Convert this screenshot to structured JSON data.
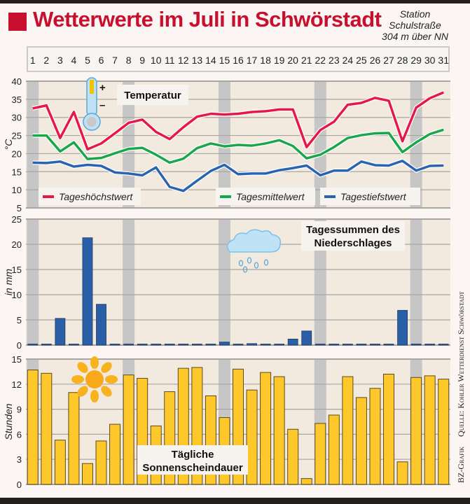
{
  "header": {
    "title": "Wetterwerte im Juli in Schwörstadt",
    "station_lines": [
      "Station",
      "Schulstraße",
      "304 m über NN"
    ]
  },
  "credit": {
    "left": "BZ-Grafik",
    "right": "Quelle: Kohler Wetterdienst Schwörstadt"
  },
  "colors": {
    "brand": "#c8102e",
    "high": "#e8174a",
    "mean": "#1aa64a",
    "low": "#2a63b0",
    "rain": "#2a5fa8",
    "sun": "#ffc82a",
    "weekend_band": "#c6c6c6",
    "plot_bg": "#f2eadf"
  },
  "days": [
    "1",
    "2",
    "3",
    "4",
    "5",
    "6",
    "7",
    "8",
    "9",
    "10",
    "11",
    "12",
    "13",
    "14",
    "15",
    "16",
    "17",
    "18",
    "19",
    "20",
    "21",
    "22",
    "23",
    "24",
    "25",
    "26",
    "27",
    "28",
    "29",
    "30",
    "31"
  ],
  "highlight_days": [
    1,
    8,
    15,
    22,
    29
  ],
  "chart_data": [
    {
      "type": "line",
      "title": "Temperatur",
      "ylabel": "°C",
      "ylim": [
        5,
        40
      ],
      "yticks": [
        5,
        10,
        15,
        20,
        25,
        30,
        35,
        40
      ],
      "x": "days",
      "grid": true,
      "series": [
        {
          "name": "Tageshöchstwert",
          "color": "#e8174a",
          "values": [
            32.5,
            33.3,
            24.3,
            31.5,
            21.2,
            22.8,
            25.6,
            28.5,
            29.4,
            26.0,
            24.0,
            27.3,
            30.2,
            31.0,
            30.8,
            31.0,
            31.5,
            31.7,
            32.2,
            32.2,
            21.8,
            26.5,
            28.8,
            33.5,
            34.0,
            35.4,
            34.6,
            23.4,
            32.7,
            35.3,
            36.9
          ]
        },
        {
          "name": "Tagesmittelwert",
          "color": "#1aa64a",
          "values": [
            25.0,
            25.0,
            20.6,
            23.1,
            18.5,
            18.8,
            20.1,
            21.3,
            21.6,
            19.7,
            17.5,
            18.6,
            21.5,
            22.8,
            22.0,
            22.4,
            22.2,
            22.8,
            23.7,
            22.1,
            18.7,
            19.7,
            21.8,
            24.3,
            25.1,
            25.6,
            25.7,
            20.4,
            23.1,
            25.4,
            26.6
          ]
        },
        {
          "name": "Tagestiefstwert",
          "color": "#2a63b0",
          "values": [
            17.5,
            17.4,
            17.8,
            16.4,
            16.9,
            16.6,
            14.8,
            14.5,
            14.0,
            16.2,
            10.8,
            9.7,
            12.5,
            15.2,
            16.9,
            14.3,
            14.5,
            14.5,
            15.4,
            16.0,
            16.7,
            14.0,
            15.3,
            15.3,
            17.8,
            16.8,
            16.7,
            18.0,
            15.3,
            16.6,
            16.7
          ]
        }
      ],
      "legend": "bottom"
    },
    {
      "type": "bar",
      "title": "Tagessummen des Niederschlages",
      "ylabel": "in mm",
      "ylim": [
        0,
        25
      ],
      "yticks": [
        0,
        5,
        10,
        15,
        20,
        25
      ],
      "grid": true,
      "values": [
        0,
        0,
        5.3,
        0,
        21.3,
        8.1,
        0,
        0,
        0,
        0,
        0,
        0,
        0,
        0,
        0.6,
        0,
        0.3,
        0,
        0,
        1.2,
        2.8,
        0,
        0,
        0,
        0,
        0,
        0,
        6.9,
        0,
        0,
        0
      ]
    },
    {
      "type": "bar",
      "title": "Tägliche Sonnenscheindauer",
      "ylabel": "Stunden",
      "ylim": [
        0,
        15
      ],
      "yticks": [
        0,
        3,
        6,
        9,
        12,
        15
      ],
      "grid": true,
      "values": [
        13.7,
        13.3,
        5.3,
        11.0,
        2.5,
        5.2,
        7.2,
        13.1,
        12.7,
        7.0,
        11.1,
        13.9,
        14.0,
        10.6,
        8.0,
        13.8,
        11.3,
        13.4,
        12.9,
        6.6,
        0.7,
        7.3,
        8.3,
        12.9,
        10.4,
        11.5,
        13.2,
        2.7,
        12.8,
        13.0,
        12.6
      ]
    }
  ]
}
